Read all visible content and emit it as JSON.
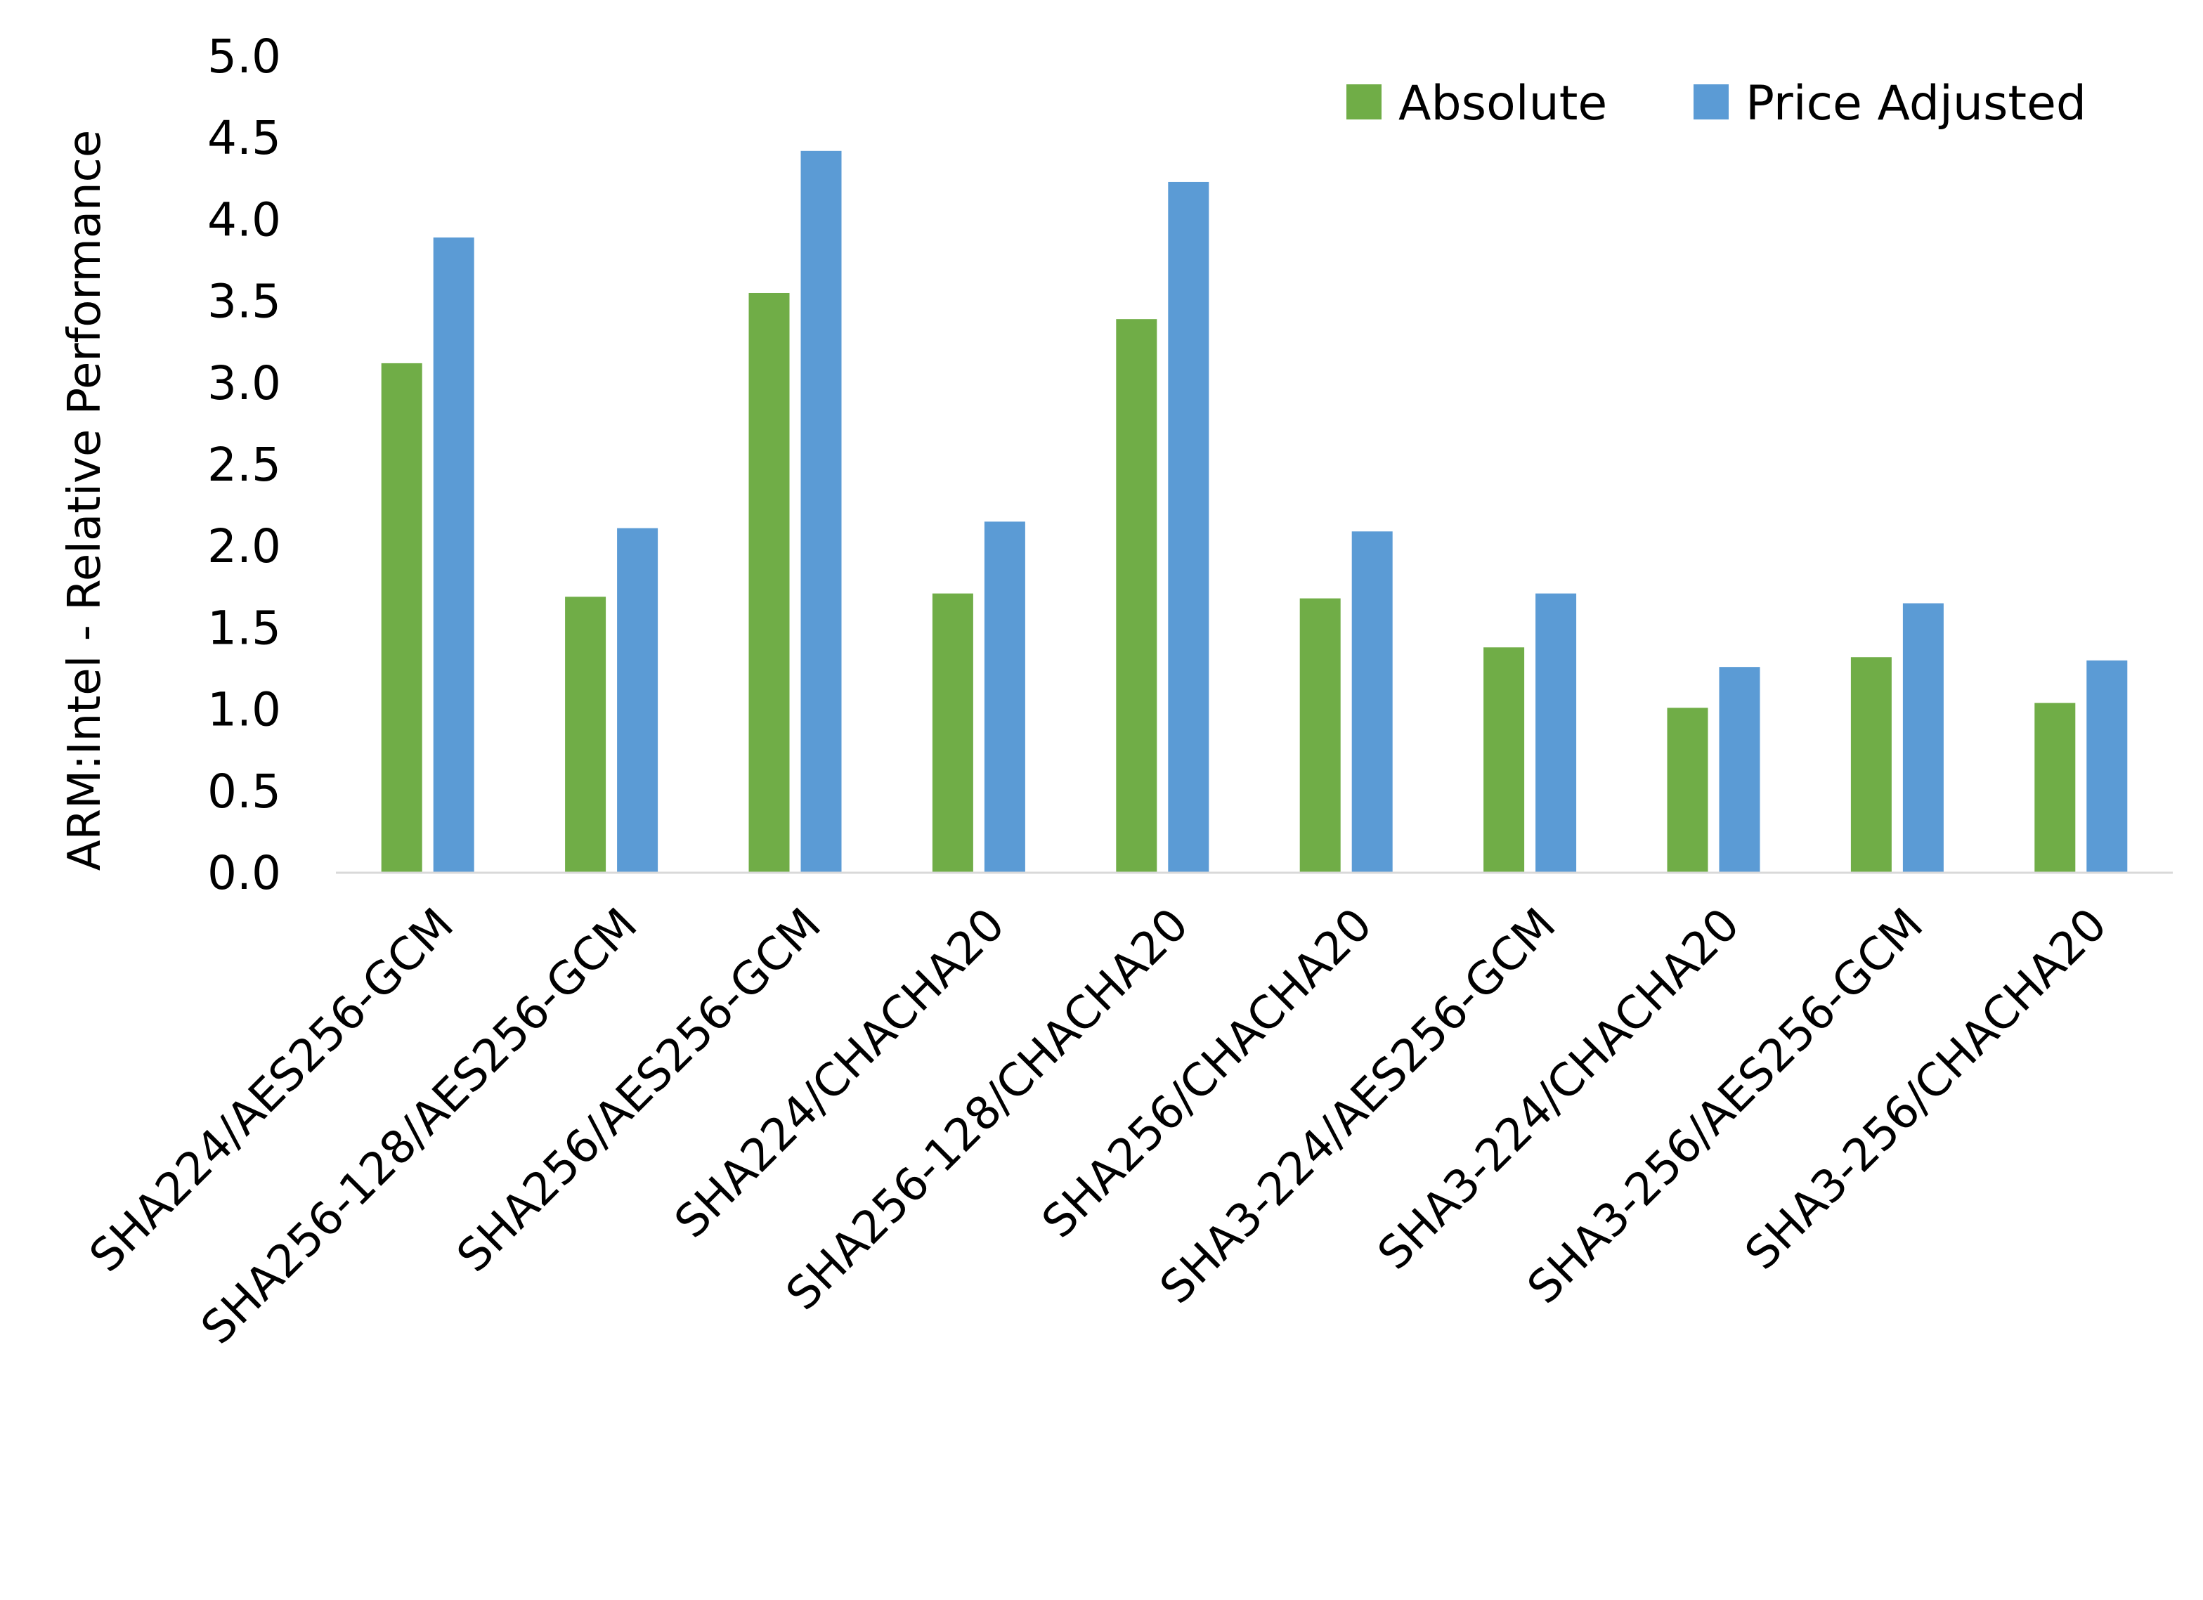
{
  "chart_data": {
    "type": "bar",
    "title": "",
    "xlabel": "",
    "ylabel": "ARM:Intel - Relative Performance",
    "ylim": [
      0,
      5.0
    ],
    "yticks": [
      "0.0",
      "0.5",
      "1.0",
      "1.5",
      "2.0",
      "2.5",
      "3.0",
      "3.5",
      "4.0",
      "4.5",
      "5.0"
    ],
    "grid": false,
    "legend_position": "top-right",
    "categories": [
      "SHA224/AES256-GCM",
      "SHA256-128/AES256-GCM",
      "SHA256/AES256-GCM",
      "SHA224/CHACHA20",
      "SHA256-128/CHACHA20",
      "SHA256/CHACHA20",
      "SHA3-224/AES256-GCM",
      "SHA3-224/CHACHA20",
      "SHA3-256/AES256-GCM",
      "SHA3-256/CHACHA20"
    ],
    "series": [
      {
        "name": "Absolute",
        "color": "#70AD47",
        "values": [
          3.12,
          1.69,
          3.55,
          1.71,
          3.39,
          1.68,
          1.38,
          1.01,
          1.32,
          1.04
        ]
      },
      {
        "name": "Price Adjusted",
        "color": "#5B9BD5",
        "values": [
          3.89,
          2.11,
          4.42,
          2.15,
          4.23,
          2.09,
          1.71,
          1.26,
          1.65,
          1.3
        ]
      }
    ]
  }
}
